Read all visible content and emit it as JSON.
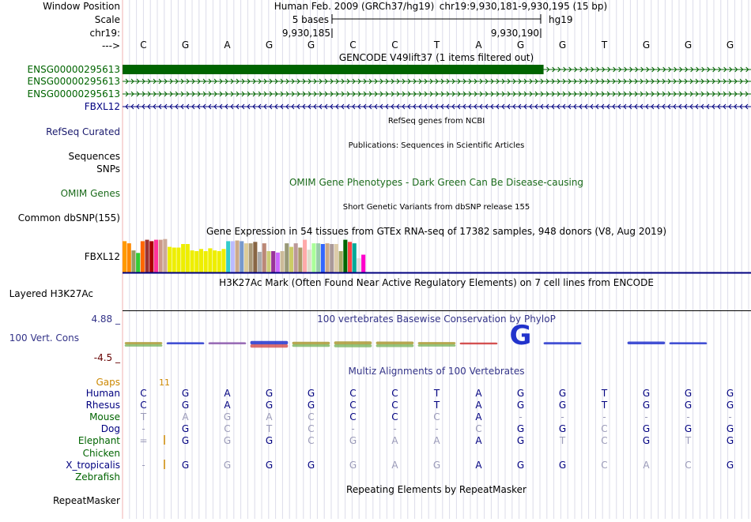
{
  "colors": {
    "navy": "#000080",
    "green": "#006400",
    "dark_green": "#006400",
    "omim_green": "#1b6b1b",
    "gaps_orange": "#cc8800",
    "cons_blue": "#333388",
    "cons_red": "#660000",
    "grid": "#d8d8e8",
    "divider": "#f0b0b0"
  },
  "header": {
    "window_position_label": "Window Position",
    "scale_label": "Scale",
    "chrom_label": "chr19:",
    "strand_label": "--->",
    "assembly_text": "Human Feb. 2009 (GRCh37/hg19)",
    "position_text": "chr19:9,930,181-9,930,195 (15 bp)",
    "scale_text": "5 bases",
    "db_text": "hg19",
    "tick_left": "9,930,185",
    "tick_right": "9,930,190"
  },
  "bases": [
    "C",
    "G",
    "A",
    "G",
    "G",
    "C",
    "C",
    "T",
    "A",
    "G",
    "G",
    "T",
    "G",
    "G",
    "G"
  ],
  "tracks": {
    "gencode": {
      "title": "GENCODE V49lift37 (1 items filtered out)",
      "rows": [
        {
          "label": "ENSG00000295613",
          "thick_end_fraction": 0.67
        },
        {
          "label": "ENSG00000295613"
        },
        {
          "label": "ENSG00000295613"
        },
        {
          "label": "FBXL12"
        }
      ]
    },
    "refseq": {
      "label": "RefSeq Curated",
      "title": "RefSeq genes from NCBI"
    },
    "publications": {
      "label": "Sequences",
      "title": "Publications: Sequences in Scientific Articles"
    },
    "snps_label": "SNPs",
    "omim": {
      "label": "OMIM Genes",
      "title": "OMIM Gene Phenotypes - Dark Green Can Be Disease-causing"
    },
    "dbsnp": {
      "label": "Common dbSNP(155)",
      "title": "Short Genetic Variants from dbSNP release 155"
    },
    "gtex": {
      "label": "FBXL12",
      "title": "Gene Expression in 54 tissues from GTEx RNA-seq of 17382 samples, 948 donors (V8, Aug 2019)",
      "bars": [
        {
          "color": "#ff9900",
          "value": 0.88
        },
        {
          "color": "#ff8800",
          "value": 0.82
        },
        {
          "color": "#999966",
          "value": 0.62
        },
        {
          "color": "#33cc33",
          "value": 0.55
        },
        {
          "color": "#ff6600",
          "value": 0.88
        },
        {
          "color": "#993333",
          "value": 0.92
        },
        {
          "color": "#aa0000",
          "value": 0.88
        },
        {
          "color": "#ff3399",
          "value": 0.92
        },
        {
          "color": "#cc9988",
          "value": 0.92
        },
        {
          "color": "#ccaa99",
          "value": 0.94
        },
        {
          "color": "#eeee00",
          "value": 0.72
        },
        {
          "color": "#eeee00",
          "value": 0.7
        },
        {
          "color": "#eeee00",
          "value": 0.7
        },
        {
          "color": "#eeee00",
          "value": 0.8
        },
        {
          "color": "#eeee00",
          "value": 0.8
        },
        {
          "color": "#eeee00",
          "value": 0.62
        },
        {
          "color": "#eeee00",
          "value": 0.6
        },
        {
          "color": "#eeee00",
          "value": 0.66
        },
        {
          "color": "#eeee00",
          "value": 0.6
        },
        {
          "color": "#eeee00",
          "value": 0.68
        },
        {
          "color": "#eeee00",
          "value": 0.62
        },
        {
          "color": "#eeee00",
          "value": 0.6
        },
        {
          "color": "#eeee00",
          "value": 0.66
        },
        {
          "color": "#33cccc",
          "value": 0.88
        },
        {
          "color": "#bbbbff",
          "value": 0.88
        },
        {
          "color": "#ccaa88",
          "value": 0.9
        },
        {
          "color": "#7799cc",
          "value": 0.88
        },
        {
          "color": "#ddcc99",
          "value": 0.82
        },
        {
          "color": "#aa9977",
          "value": 0.82
        },
        {
          "color": "#886644",
          "value": 0.86
        },
        {
          "color": "#aaaaaa",
          "value": 0.58
        },
        {
          "color": "#bb8877",
          "value": 0.82
        },
        {
          "color": "#cccc77",
          "value": 0.6
        },
        {
          "color": "#993399",
          "value": 0.6
        },
        {
          "color": "#cc66ff",
          "value": 0.56
        },
        {
          "color": "#ccbb99",
          "value": 0.6
        },
        {
          "color": "#999977",
          "value": 0.82
        },
        {
          "color": "#cccc66",
          "value": 0.72
        },
        {
          "color": "#bb9999",
          "value": 0.82
        },
        {
          "color": "#aa9966",
          "value": 0.7
        },
        {
          "color": "#ffaaaa",
          "value": 0.92
        },
        {
          "color": "#ddddcc",
          "value": 0.64
        },
        {
          "color": "#aaff99",
          "value": 0.82
        },
        {
          "color": "#99ccaa",
          "value": 0.82
        },
        {
          "color": "#3366ff",
          "value": 0.8
        },
        {
          "color": "#ccaa88",
          "value": 0.82
        },
        {
          "color": "#aa9999",
          "value": 0.8
        },
        {
          "color": "#ddccaa",
          "value": 0.8
        },
        {
          "color": "#aaaa66",
          "value": 0.6
        },
        {
          "color": "#006600",
          "value": 0.92
        },
        {
          "color": "#ff4444",
          "value": 0.86
        },
        {
          "color": "#00aa99",
          "value": 0.82
        },
        {
          "color": "#dddddd",
          "value": 0.4
        },
        {
          "color": "#ff00cc",
          "value": 0.5
        }
      ]
    },
    "h3k27ac": {
      "label": "Layered H3K27Ac",
      "title": "H3K27Ac Mark (Often Found Near Active Regulatory Elements) on 7 cell lines from ENCODE"
    },
    "conservation": {
      "label": "100 Vert. Cons",
      "title": "100 vertebrates Basewise Conservation by PhyloP",
      "ymax_label": "4.88 _",
      "ymin_label": "-4.5 _",
      "logo_letters": [
        {
          "base": "G",
          "scale": 0.28,
          "kind": "mixed"
        },
        {
          "base": "G",
          "scale": 0.22,
          "kind": "blue"
        },
        {
          "base": "A",
          "scale": 0.22,
          "kind": "purple"
        },
        {
          "base": "G",
          "scale": 0.55,
          "kind": "blue_red"
        },
        {
          "base": "G",
          "scale": 0.35,
          "kind": "mixed"
        },
        {
          "base": "C",
          "scale": 0.45,
          "kind": "mixed"
        },
        {
          "base": "C",
          "scale": 0.4,
          "kind": "mixed"
        },
        {
          "base": "T",
          "scale": 0.28,
          "kind": "mixed"
        },
        {
          "base": "A",
          "scale": 0.15,
          "kind": "red"
        },
        {
          "base": "G",
          "scale": 1.0,
          "kind": "blue"
        },
        {
          "base": "G",
          "scale": 0.25,
          "kind": "blue"
        },
        {
          "base": "T",
          "scale": 0.0,
          "kind": "none"
        },
        {
          "base": "G",
          "scale": 0.4,
          "kind": "blue"
        },
        {
          "base": "G",
          "scale": 0.22,
          "kind": "blue"
        },
        {
          "base": "G",
          "scale": 0.0,
          "kind": "none"
        }
      ]
    },
    "multiz": {
      "title": "Multiz Alignments of 100 Vertebrates",
      "gaps_label": "Gaps",
      "gaps_value": "11",
      "species": [
        {
          "name": "Human",
          "color": "#000080",
          "bases": [
            "C",
            "G",
            "A",
            "G",
            "G",
            "C",
            "C",
            "T",
            "A",
            "G",
            "G",
            "T",
            "G",
            "G",
            "G"
          ],
          "styles": [
            "n",
            "n",
            "n",
            "n",
            "n",
            "n",
            "n",
            "n",
            "n",
            "n",
            "n",
            "n",
            "n",
            "n",
            "n"
          ]
        },
        {
          "name": "Rhesus",
          "color": "#000080",
          "bases": [
            "C",
            "G",
            "A",
            "G",
            "G",
            "C",
            "C",
            "T",
            "A",
            "G",
            "G",
            "T",
            "G",
            "G",
            "G"
          ],
          "styles": [
            "n",
            "n",
            "n",
            "n",
            "n",
            "n",
            "n",
            "n",
            "n",
            "n",
            "n",
            "n",
            "n",
            "n",
            "n"
          ]
        },
        {
          "name": "Mouse",
          "color": "#006400",
          "bases": [
            "T",
            "A",
            "G",
            "A",
            "C",
            "C",
            "C",
            "C",
            "A",
            "-",
            "-",
            "-",
            "-",
            "-",
            "-"
          ],
          "styles": [
            "f",
            "f",
            "f",
            "f",
            "f",
            "n",
            "n",
            "f",
            "n",
            "f",
            "f",
            "f",
            "f",
            "f",
            "f"
          ]
        },
        {
          "name": "Dog",
          "color": "#000080",
          "bases": [
            "-",
            "G",
            "C",
            "T",
            "C",
            "-",
            "-",
            "-",
            "C",
            "G",
            "G",
            "C",
            "G",
            "G",
            "G"
          ],
          "styles": [
            "f",
            "n",
            "f",
            "f",
            "f",
            "f",
            "f",
            "f",
            "f",
            "n",
            "n",
            "f",
            "n",
            "n",
            "n"
          ]
        },
        {
          "name": "Elephant",
          "color": "#006400",
          "bases": [
            "=",
            "G",
            "G",
            "G",
            "C",
            "G",
            "A",
            "A",
            "A",
            "G",
            "T",
            "C",
            "G",
            "T",
            "G"
          ],
          "styles": [
            "f",
            "n",
            "f",
            "n",
            "f",
            "f",
            "f",
            "f",
            "n",
            "n",
            "f",
            "f",
            "n",
            "f",
            "n"
          ],
          "insert": true
        },
        {
          "name": "Chicken",
          "color": "#006400",
          "bases": [],
          "styles": []
        },
        {
          "name": "X_tropicalis",
          "color": "#000080",
          "bases": [
            "-",
            "G",
            "G",
            "G",
            "G",
            "G",
            "A",
            "G",
            "A",
            "G",
            "G",
            "C",
            "A",
            "C",
            "G"
          ],
          "styles": [
            "f",
            "n",
            "f",
            "n",
            "n",
            "f",
            "f",
            "f",
            "n",
            "n",
            "n",
            "f",
            "f",
            "f",
            "n"
          ],
          "insert": true
        },
        {
          "name": "Zebrafish",
          "color": "#006400",
          "bases": [],
          "styles": []
        }
      ]
    },
    "repeatmasker": {
      "label": "RepeatMasker",
      "title": "Repeating Elements by RepeatMasker"
    }
  }
}
